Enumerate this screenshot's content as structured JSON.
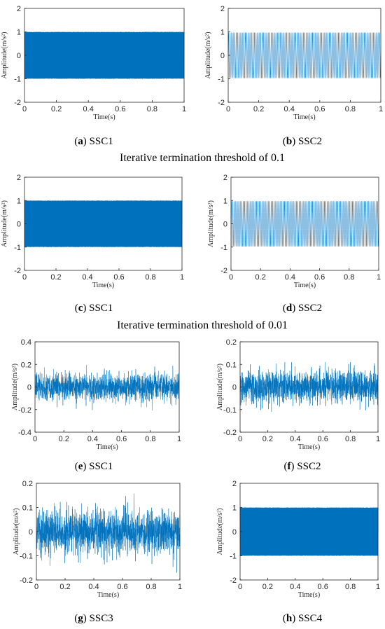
{
  "colors": {
    "signal": "#0072BD",
    "axis": "#262626"
  },
  "sections": [
    {
      "id": "s1",
      "text": "Iterative termination threshold of 0.1"
    },
    {
      "id": "s2",
      "text": "Iterative termination threshold of 0.01"
    }
  ],
  "chart_data": [
    {
      "id": "a",
      "type": "line",
      "letter": "a",
      "caption": "SSC1",
      "xlabel": "Time(s)",
      "ylabel": "Amplitude(m/s²)",
      "xlim": [
        0,
        1
      ],
      "ylim": [
        -2,
        2
      ],
      "xticks": [
        0,
        0.2,
        0.4,
        0.6,
        0.8,
        1
      ],
      "yticks": [
        -2,
        -1,
        0,
        1,
        2
      ],
      "signal": {
        "kind": "dense",
        "amplitude": 1.0
      }
    },
    {
      "id": "b",
      "type": "line",
      "letter": "b",
      "caption": "SSC2",
      "xlabel": "Time(s)",
      "ylabel": "Amplitude(m/s²)",
      "xlim": [
        0,
        1
      ],
      "ylim": [
        -2,
        2
      ],
      "xticks": [
        0,
        0.2,
        0.4,
        0.6,
        0.8,
        1
      ],
      "yticks": [
        -2,
        -1,
        0,
        1,
        2
      ],
      "signal": {
        "kind": "sine",
        "amplitude": 0.97,
        "cycles": 100
      }
    },
    {
      "id": "c",
      "type": "line",
      "letter": "c",
      "caption": "SSC1",
      "xlabel": "Time(s)",
      "ylabel": "Amplitude(m/s²)",
      "xlim": [
        0,
        1
      ],
      "ylim": [
        -2,
        2
      ],
      "xticks": [
        0,
        0.2,
        0.4,
        0.6,
        0.8,
        1
      ],
      "yticks": [
        -2,
        -1,
        0,
        1,
        2
      ],
      "signal": {
        "kind": "dense",
        "amplitude": 1.0
      }
    },
    {
      "id": "d",
      "type": "line",
      "letter": "d",
      "caption": "SSC2",
      "xlabel": "Time(s)",
      "ylabel": "Amplitude(m/s²)",
      "xlim": [
        0,
        1
      ],
      "ylim": [
        -2,
        2
      ],
      "xticks": [
        0,
        0.2,
        0.4,
        0.6,
        0.8,
        1
      ],
      "yticks": [
        -2,
        -1,
        0,
        1,
        2
      ],
      "signal": {
        "kind": "sine",
        "amplitude": 0.97,
        "cycles": 100
      }
    },
    {
      "id": "e",
      "type": "line",
      "letter": "e",
      "caption": "SSC1",
      "xlabel": "Time(s)",
      "ylabel": "Amplitude(m/s²)",
      "xlim": [
        0,
        1
      ],
      "ylim": [
        -0.4,
        0.4
      ],
      "xticks": [
        0,
        0.2,
        0.4,
        0.6,
        0.8,
        1
      ],
      "yticks": [
        -0.4,
        -0.2,
        0,
        0.2,
        0.4
      ],
      "signal": {
        "kind": "noise",
        "amplitude": 0.06,
        "peak": 0.22
      }
    },
    {
      "id": "f",
      "type": "line",
      "letter": "f",
      "caption": "SSC2",
      "xlabel": "Time(s)",
      "ylabel": "Amplitude(m/s²)",
      "xlim": [
        0,
        1
      ],
      "ylim": [
        -0.2,
        0.2
      ],
      "xticks": [
        0,
        0.2,
        0.4,
        0.6,
        0.8,
        1
      ],
      "yticks": [
        -0.2,
        -0.1,
        0,
        0.1,
        0.2
      ],
      "signal": {
        "kind": "noise",
        "amplitude": 0.035,
        "peak": 0.11
      }
    },
    {
      "id": "g",
      "type": "line",
      "letter": "g",
      "caption": "SSC3",
      "xlabel": "Time(s)",
      "ylabel": "Amplitude(m/s²)",
      "xlim": [
        0,
        1
      ],
      "ylim": [
        -0.2,
        0.2
      ],
      "xticks": [
        0,
        0.2,
        0.4,
        0.6,
        0.8,
        1
      ],
      "yticks": [
        -0.2,
        -0.1,
        0,
        0.1,
        0.2
      ],
      "signal": {
        "kind": "noise",
        "amplitude": 0.045,
        "peak": 0.17
      }
    },
    {
      "id": "h",
      "type": "line",
      "letter": "h",
      "caption": "SSC4",
      "xlabel": "Time(s)",
      "ylabel": "Amplitude(m/s²)",
      "xlim": [
        0,
        1
      ],
      "ylim": [
        -2,
        2
      ],
      "xticks": [
        0,
        0.2,
        0.4,
        0.6,
        0.8,
        1
      ],
      "yticks": [
        -2,
        -1,
        0,
        1,
        2
      ],
      "signal": {
        "kind": "dense",
        "amplitude": 1.0
      }
    }
  ]
}
